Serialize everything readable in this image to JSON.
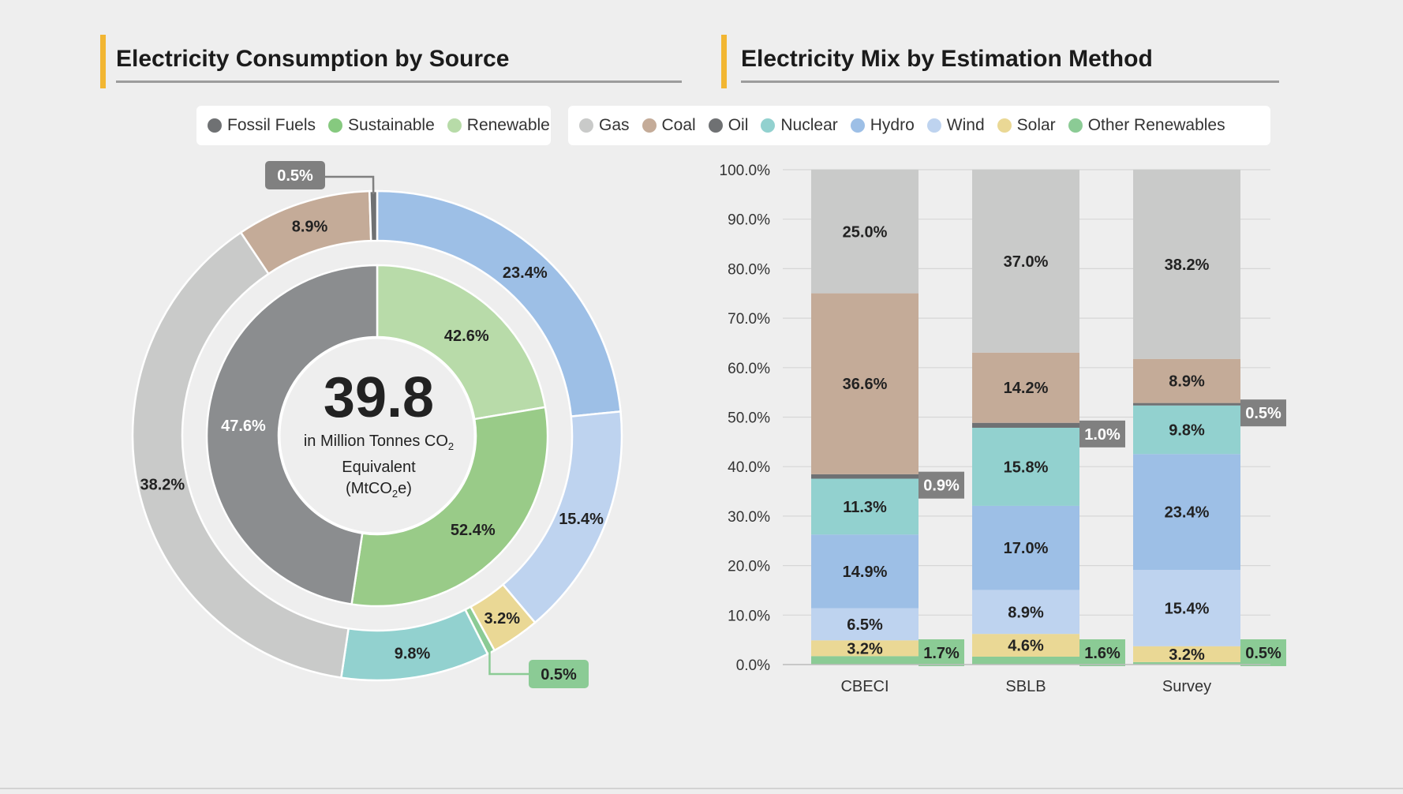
{
  "left": {
    "title": "Electricity Consumption by Source",
    "legend": [
      {
        "label": "Fossil Fuels",
        "color": "#6f7173"
      },
      {
        "label": "Sustainable",
        "color": "#86c97f"
      },
      {
        "label": "Renewable",
        "color": "#b7dba8"
      }
    ],
    "center_value": "39.8",
    "center_line1": "in Million Tonnes CO",
    "center_line1_sub": "2",
    "center_line2": "Equivalent",
    "center_line3a": "(MtCO",
    "center_line3_sub": "2",
    "center_line3b": "e)"
  },
  "right": {
    "title": "Electricity Mix by Estimation Method",
    "legend": [
      {
        "label": "Gas",
        "color": "#c9cac9"
      },
      {
        "label": "Coal",
        "color": "#c4ab98"
      },
      {
        "label": "Oil",
        "color": "#6f7173"
      },
      {
        "label": "Nuclear",
        "color": "#92d1cf"
      },
      {
        "label": "Hydro",
        "color": "#9dbfe6"
      },
      {
        "label": "Wind",
        "color": "#bed3ef"
      },
      {
        "label": "Solar",
        "color": "#ead895"
      },
      {
        "label": "Other Renewables",
        "color": "#8bcb95"
      }
    ]
  },
  "chart_data": [
    {
      "type": "pie",
      "title": "Electricity Consumption by Source",
      "inner_ring": [
        {
          "name": "Fossil Fuels",
          "value": 47.6,
          "label": "47.6%",
          "color": "#8b8d8f"
        },
        {
          "name": "Sustainable",
          "value": 52.4,
          "label": "52.4%",
          "color": "#99cb88"
        },
        {
          "name": "Renewable",
          "value": 42.6,
          "label": "42.6%",
          "color": "#b8dba9"
        }
      ],
      "outer_ring": [
        {
          "name": "Hydro",
          "value": 23.4,
          "label": "23.4%",
          "color": "#9dbfe6"
        },
        {
          "name": "Wind",
          "value": 15.4,
          "label": "15.4%",
          "color": "#bed3ef"
        },
        {
          "name": "Solar",
          "value": 3.2,
          "label": "3.2%",
          "color": "#ead895"
        },
        {
          "name": "Other Renewables",
          "value": 0.5,
          "label": "0.5%",
          "color": "#8bcb95"
        },
        {
          "name": "Nuclear",
          "value": 9.8,
          "label": "9.8%",
          "color": "#92d1cf"
        },
        {
          "name": "Gas",
          "value": 38.2,
          "label": "38.2%",
          "color": "#c9cac9"
        },
        {
          "name": "Coal",
          "value": 8.9,
          "label": "8.9%",
          "color": "#c4ab98"
        },
        {
          "name": "Oil",
          "value": 0.5,
          "label": "0.5%",
          "color": "#6f7173"
        }
      ]
    },
    {
      "type": "bar",
      "stacked": true,
      "title": "Electricity Mix by Estimation Method",
      "categories": [
        "CBECI",
        "SBLB",
        "Survey"
      ],
      "ylim": [
        0,
        100
      ],
      "yticks": [
        "0.0%",
        "10.0%",
        "20.0%",
        "30.0%",
        "40.0%",
        "50.0%",
        "60.0%",
        "70.0%",
        "80.0%",
        "90.0%",
        "100.0%"
      ],
      "series": [
        {
          "name": "Other Renewables",
          "color": "#8bcb95",
          "values": [
            1.7,
            1.6,
            0.5
          ],
          "labels": [
            "1.7%",
            "1.6%",
            "0.5%"
          ],
          "label_style": "side-green"
        },
        {
          "name": "Solar",
          "color": "#ead895",
          "values": [
            3.2,
            4.6,
            3.2
          ],
          "labels": [
            "3.2%",
            "4.6%",
            "3.2%"
          ],
          "label_style": "inside"
        },
        {
          "name": "Wind",
          "color": "#bed3ef",
          "values": [
            6.5,
            8.9,
            15.4
          ],
          "labels": [
            "6.5%",
            "8.9%",
            "15.4%"
          ],
          "label_style": "inside"
        },
        {
          "name": "Hydro",
          "color": "#9dbfe6",
          "values": [
            14.9,
            17.0,
            23.4
          ],
          "labels": [
            "14.9%",
            "17.0%",
            "23.4%"
          ],
          "label_style": "inside"
        },
        {
          "name": "Nuclear",
          "color": "#92d1cf",
          "values": [
            11.3,
            15.8,
            9.8
          ],
          "labels": [
            "11.3%",
            "15.8%",
            "9.8%"
          ],
          "label_style": "inside"
        },
        {
          "name": "Oil",
          "color": "#6f7173",
          "values": [
            0.9,
            1.0,
            0.5
          ],
          "labels": [
            "0.9%",
            "1.0%",
            "0.5%"
          ],
          "label_style": "side-gray"
        },
        {
          "name": "Coal",
          "color": "#c4ab98",
          "values": [
            36.6,
            14.2,
            8.9
          ],
          "labels": [
            "36.6%",
            "14.2%",
            "8.9%"
          ],
          "label_style": "inside"
        },
        {
          "name": "Gas",
          "color": "#c9cac9",
          "values": [
            25.0,
            37.0,
            38.2
          ],
          "labels": [
            "25.0%",
            "37.0%",
            "38.2%"
          ],
          "label_style": "inside"
        }
      ]
    }
  ]
}
